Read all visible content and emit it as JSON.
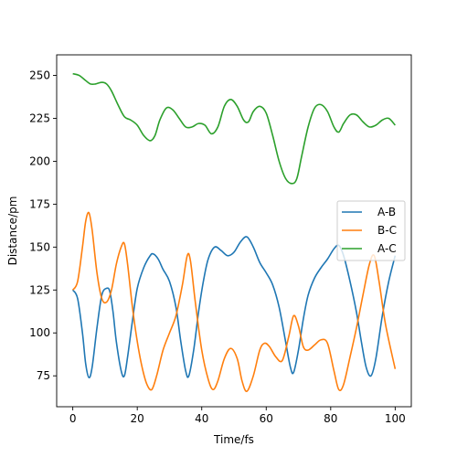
{
  "chart_data": {
    "type": "line",
    "title": "",
    "xlabel": "Time/fs",
    "ylabel": "Distance/pm",
    "xlim": [
      -5,
      105
    ],
    "ylim": [
      57,
      262
    ],
    "xticks": [
      0,
      20,
      40,
      60,
      80,
      100
    ],
    "yticks": [
      75,
      100,
      125,
      150,
      175,
      200,
      225,
      250
    ],
    "grid": false,
    "legend_position": "center-right",
    "series": [
      {
        "name": "A-B",
        "color": "#1f77b4",
        "x": [
          0,
          1.5,
          3,
          4,
          5,
          6,
          7.5,
          9,
          10.5,
          11.5,
          12.5,
          13.5,
          15,
          16,
          17,
          18.5,
          20,
          22,
          24,
          25,
          26.5,
          28,
          30,
          32,
          33.5,
          35,
          36,
          37.5,
          39,
          40.5,
          42,
          44,
          46,
          48,
          50,
          52,
          54,
          56,
          58,
          60,
          62,
          64,
          66,
          67.5,
          68.5,
          70,
          71.5,
          73,
          75,
          77,
          79,
          81,
          82.5,
          84,
          86,
          88,
          89.5,
          91,
          92.5,
          94,
          96,
          98,
          100
        ],
        "y": [
          125,
          120,
          100,
          82,
          74,
          80,
          103,
          122,
          126,
          124,
          112,
          95,
          78,
          75,
          86,
          107,
          126,
          138,
          145,
          146,
          143,
          137,
          130,
          115,
          95,
          78,
          75,
          90,
          112,
          130,
          143,
          150,
          148,
          145,
          147,
          153,
          156,
          150,
          141,
          135,
          128,
          115,
          95,
          80,
          77,
          90,
          108,
          122,
          132,
          138,
          143,
          149,
          151,
          145,
          130,
          112,
          95,
          80,
          75,
          85,
          110,
          130,
          145
        ]
      },
      {
        "name": "B-C",
        "color": "#ff7f0e",
        "x": [
          0,
          1.5,
          3,
          4,
          5,
          6,
          7.5,
          9,
          10.5,
          12,
          13.5,
          15,
          16,
          17,
          18.5,
          20,
          21.5,
          23,
          24.5,
          26,
          28,
          30,
          32,
          34,
          35.5,
          36.5,
          38,
          40,
          42,
          43.5,
          45,
          47,
          49,
          51,
          52.5,
          54,
          56,
          58,
          59.5,
          61,
          63,
          65,
          67,
          68.5,
          70,
          71.5,
          73,
          75,
          77,
          79,
          81,
          82.5,
          84,
          86,
          88,
          90,
          92,
          93.5,
          95,
          97,
          100
        ],
        "y": [
          125,
          130,
          150,
          165,
          170,
          160,
          135,
          120,
          118,
          125,
          140,
          150,
          152,
          140,
          115,
          95,
          80,
          70,
          67,
          75,
          90,
          100,
          110,
          128,
          145,
          142,
          118,
          90,
          73,
          67,
          72,
          85,
          91,
          85,
          72,
          66,
          75,
          90,
          94,
          92,
          86,
          84,
          98,
          110,
          104,
          92,
          90,
          93,
          96,
          94,
          78,
          67,
          70,
          86,
          103,
          122,
          140,
          145,
          130,
          105,
          79
        ]
      },
      {
        "name": "A-C",
        "color": "#2ca02c",
        "x": [
          0,
          2,
          4,
          5.5,
          7,
          9,
          10.5,
          12,
          14,
          16,
          18,
          20,
          22,
          24,
          25.5,
          27,
          29,
          31,
          33,
          35,
          37,
          39,
          41,
          43,
          45,
          47,
          49,
          51,
          53,
          54.5,
          56,
          58,
          60,
          62,
          64,
          66,
          68,
          69.5,
          71,
          73,
          75,
          77,
          79,
          81,
          82.5,
          84,
          86,
          88,
          90,
          92,
          94,
          96,
          98,
          100
        ],
        "y": [
          251,
          250,
          247,
          245,
          245,
          246,
          245,
          241,
          233,
          226,
          224,
          221,
          215,
          212,
          215,
          224,
          231,
          230,
          225,
          220,
          220,
          222,
          221,
          216,
          220,
          232,
          236,
          232,
          224,
          223,
          229,
          232,
          228,
          215,
          200,
          190,
          187,
          190,
          203,
          220,
          231,
          233,
          229,
          220,
          217,
          222,
          227,
          227,
          223,
          220,
          221,
          224,
          225,
          221
        ]
      }
    ]
  }
}
